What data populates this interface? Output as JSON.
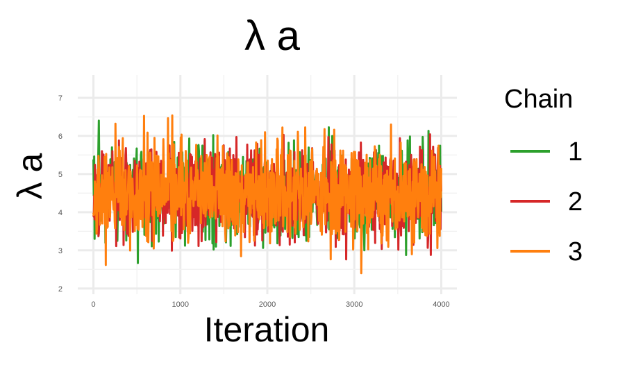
{
  "chart_data": {
    "type": "line",
    "title": "λ a",
    "xlabel": "Iteration",
    "ylabel": "λ a",
    "xlim": [
      -180,
      4180
    ],
    "ylim": [
      1.85,
      7.6
    ],
    "x_ticks": [
      0,
      1000,
      2000,
      3000,
      4000
    ],
    "x_tick_labels": [
      "0",
      "1000",
      "2000",
      "3000",
      "4000"
    ],
    "y_ticks": [
      2,
      3,
      4,
      5,
      6,
      7
    ],
    "y_tick_labels": [
      "2",
      "3",
      "4",
      "5",
      "6",
      "7"
    ],
    "grid": true,
    "legend": {
      "title": "Chain",
      "position": "right"
    },
    "series": [
      {
        "name": "1",
        "color": "#2ca02c",
        "mean": 4.5,
        "sd": 0.62,
        "min": 2.6,
        "max": 6.9,
        "n_iterations": 4000
      },
      {
        "name": "2",
        "color": "#d62728",
        "mean": 4.5,
        "sd": 0.62,
        "min": 2.6,
        "max": 7.3,
        "n_iterations": 4000
      },
      {
        "name": "3",
        "color": "#ff7f0e",
        "mean": 4.5,
        "sd": 0.62,
        "min": 2.2,
        "max": 7.1,
        "n_iterations": 4000
      }
    ]
  }
}
